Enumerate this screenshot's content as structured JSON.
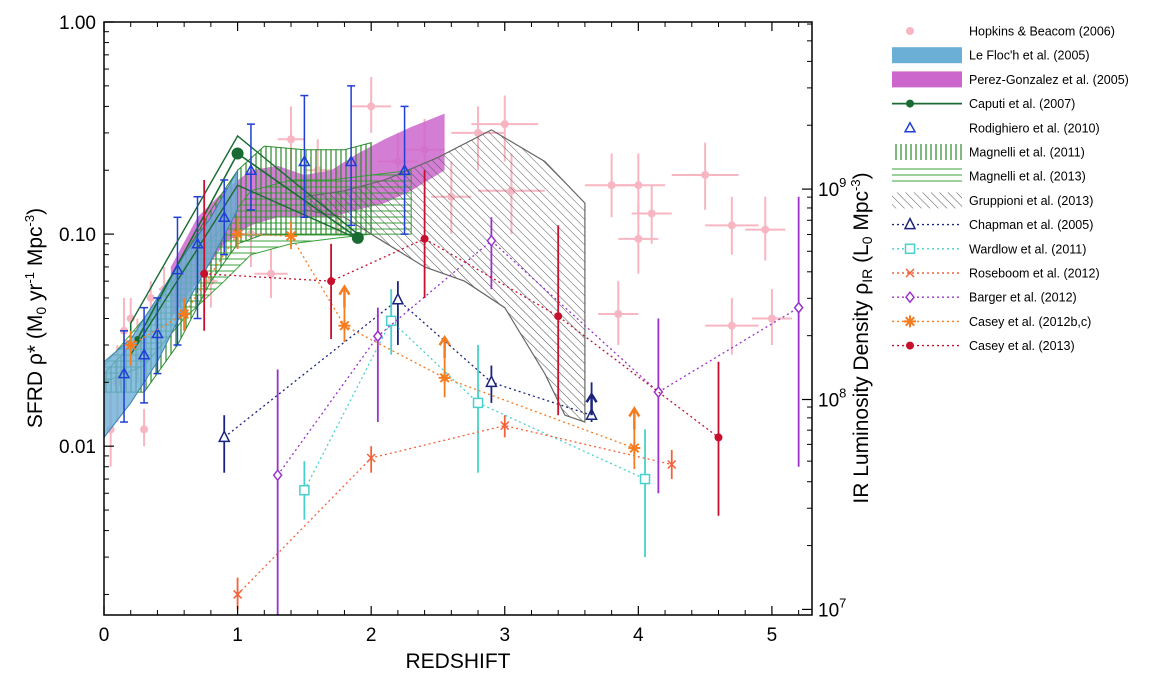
{
  "chart_data": {
    "type": "scatter",
    "xlabel": "REDSHIFT",
    "ylabel_main": "SFRD ρ* (M",
    "ylabel_sub": "0",
    "ylabel_unit": " yr",
    "ylabel_exp1": "-1",
    "ylabel_mpc": " Mpc",
    "ylabel_exp2": "-3",
    "ylabel_close": ")",
    "y2label_main": "IR Luminosity Density ρ",
    "y2label_sub": "IR",
    "y2label_mid": " (L",
    "y2label_sub2": "0",
    "y2label_mpc": " Mpc",
    "y2label_exp": "-3",
    "y2label_close": ")",
    "xlim": [
      0,
      5.3
    ],
    "ylim": [
      0.0016,
      1.0
    ],
    "xticks": [
      "0",
      "1",
      "2",
      "3",
      "4",
      "5"
    ],
    "yticks": [
      "0.01",
      "0.10",
      "1.00"
    ],
    "y2ticks": [
      {
        "base": "10",
        "exp": "7"
      },
      {
        "base": "10",
        "exp": "8"
      },
      {
        "base": "10",
        "exp": "9"
      }
    ],
    "legend": [
      {
        "label": "Hopkins & Beacom (2006)",
        "color": "#f7b6c2",
        "kind": "dot"
      },
      {
        "label": "Le Floc'h et al. (2005)",
        "color": "#6baed6",
        "kind": "band"
      },
      {
        "label": "Perez-Gonzalez et al. (2005)",
        "color": "#cc66cc",
        "kind": "band"
      },
      {
        "label": "Caputi et al. (2007)",
        "color": "#1a6b33",
        "kind": "line-dot"
      },
      {
        "label": "Rodighiero et al. (2010)",
        "color": "#1f3fd6",
        "kind": "triangle"
      },
      {
        "label": "Magnelli et al. (2011)",
        "color": "#2a8a2a",
        "kind": "vhatch"
      },
      {
        "label": "Magnelli et al. (2013)",
        "color": "#3aa03a",
        "kind": "hhatch"
      },
      {
        "label": "Gruppioni et al. (2013)",
        "color": "#555555",
        "kind": "dhatch"
      },
      {
        "label": "Chapman et al. (2005)",
        "color": "#1a237e",
        "kind": "dot-triangle"
      },
      {
        "label": "Wardlow et al. (2011)",
        "color": "#48d1cc",
        "kind": "dot-square"
      },
      {
        "label": "Roseboom et al. (2012)",
        "color": "#f4623a",
        "kind": "dot-x"
      },
      {
        "label": "Barger et al. (2012)",
        "color": "#9932cc",
        "kind": "dot-diamond"
      },
      {
        "label": "Casey et al. (2012b,c)",
        "color": "#f57c1f",
        "kind": "dot-star"
      },
      {
        "label": "Casey et al. (2013)",
        "color": "#c8102e",
        "kind": "dot-circle"
      }
    ],
    "hopkins": [
      [
        0.05,
        0.012,
        0.03,
        0.008,
        0.018
      ],
      [
        0.1,
        0.02,
        0.05,
        0.013,
        0.03
      ],
      [
        0.15,
        0.035,
        0.05,
        0.025,
        0.05
      ],
      [
        0.2,
        0.04,
        0.06,
        0.03,
        0.05
      ],
      [
        0.25,
        0.03,
        0.05,
        0.02,
        0.04
      ],
      [
        0.3,
        0.012,
        0.05,
        0.01,
        0.015
      ],
      [
        0.35,
        0.05,
        0.05,
        0.04,
        0.06
      ],
      [
        0.45,
        0.055,
        0.08,
        0.04,
        0.07
      ],
      [
        0.6,
        0.05,
        0.1,
        0.035,
        0.07
      ],
      [
        0.8,
        0.06,
        0.1,
        0.045,
        0.08
      ],
      [
        1.1,
        0.1,
        0.2,
        0.07,
        0.15
      ],
      [
        1.25,
        0.065,
        0.25,
        0.05,
        0.085
      ],
      [
        1.4,
        0.28,
        0.2,
        0.2,
        0.4
      ],
      [
        1.6,
        0.2,
        0.2,
        0.15,
        0.28
      ],
      [
        1.75,
        0.14,
        0.2,
        0.1,
        0.2
      ],
      [
        2.0,
        0.4,
        0.3,
        0.3,
        0.55
      ],
      [
        2.2,
        0.22,
        0.3,
        0.15,
        0.3
      ],
      [
        2.4,
        0.25,
        0.3,
        0.18,
        0.35
      ],
      [
        2.6,
        0.15,
        0.3,
        0.1,
        0.22
      ],
      [
        2.8,
        0.3,
        0.4,
        0.2,
        0.4
      ],
      [
        3.0,
        0.33,
        0.5,
        0.22,
        0.45
      ],
      [
        3.05,
        0.16,
        0.5,
        0.1,
        0.24
      ],
      [
        3.8,
        0.17,
        0.4,
        0.12,
        0.24
      ],
      [
        4.0,
        0.17,
        0.4,
        0.12,
        0.24
      ],
      [
        4.0,
        0.095,
        0.3,
        0.065,
        0.14
      ],
      [
        4.1,
        0.125,
        0.3,
        0.09,
        0.17
      ],
      [
        3.85,
        0.042,
        0.3,
        0.03,
        0.06
      ],
      [
        4.5,
        0.19,
        0.5,
        0.13,
        0.27
      ],
      [
        4.7,
        0.11,
        0.4,
        0.08,
        0.15
      ],
      [
        4.95,
        0.105,
        0.3,
        0.075,
        0.15
      ],
      [
        4.7,
        0.037,
        0.4,
        0.027,
        0.05
      ],
      [
        5.0,
        0.04,
        0.3,
        0.03,
        0.055
      ]
    ],
    "lefloch_upper": [
      [
        0,
        0.025
      ],
      [
        0.2,
        0.032
      ],
      [
        0.4,
        0.05
      ],
      [
        0.6,
        0.08
      ],
      [
        0.8,
        0.12
      ],
      [
        1.0,
        0.2
      ]
    ],
    "lefloch_lower": [
      [
        1.0,
        0.13
      ],
      [
        0.8,
        0.075
      ],
      [
        0.6,
        0.045
      ],
      [
        0.4,
        0.025
      ],
      [
        0.2,
        0.016
      ],
      [
        0,
        0.011
      ]
    ],
    "perez_upper": [
      [
        0.5,
        0.07
      ],
      [
        0.7,
        0.12
      ],
      [
        0.9,
        0.16
      ],
      [
        1.1,
        0.2
      ],
      [
        1.3,
        0.21
      ],
      [
        1.5,
        0.19
      ],
      [
        1.7,
        0.2
      ],
      [
        1.9,
        0.24
      ],
      [
        2.1,
        0.28
      ],
      [
        2.3,
        0.32
      ],
      [
        2.55,
        0.37
      ],
      [
        2.55,
        0.2
      ]
    ],
    "perez_lower": [
      [
        2.3,
        0.16
      ],
      [
        2.1,
        0.14
      ],
      [
        1.9,
        0.13
      ],
      [
        1.7,
        0.12
      ],
      [
        1.5,
        0.12
      ],
      [
        1.3,
        0.12
      ],
      [
        1.1,
        0.11
      ],
      [
        0.9,
        0.09
      ],
      [
        0.7,
        0.06
      ],
      [
        0.5,
        0.04
      ]
    ],
    "caputi": [
      [
        0.25,
        0.032
      ],
      [
        1.0,
        0.24
      ],
      [
        1.9,
        0.096
      ]
    ],
    "caputi_band": [
      [
        0.2,
        0.027
      ],
      [
        1.0,
        0.17
      ],
      [
        1.9,
        0.095
      ],
      [
        1.9,
        0.1
      ],
      [
        1.0,
        0.29
      ],
      [
        0.2,
        0.038
      ]
    ],
    "rodighiero": [
      [
        0.15,
        0.022,
        0.013,
        0.035
      ],
      [
        0.3,
        0.027,
        0.016,
        0.045
      ],
      [
        0.4,
        0.034,
        0.022,
        0.05
      ],
      [
        0.55,
        0.068,
        0.03,
        0.12
      ],
      [
        0.7,
        0.09,
        0.04,
        0.15
      ],
      [
        0.9,
        0.12,
        0.08,
        0.18
      ],
      [
        1.1,
        0.2,
        0.13,
        0.33
      ],
      [
        1.5,
        0.22,
        0.12,
        0.45
      ],
      [
        1.85,
        0.22,
        0.11,
        0.5
      ],
      [
        2.25,
        0.2,
        0.1,
        0.4
      ]
    ],
    "magnelli11_upper": [
      [
        0.0,
        0.022
      ],
      [
        0.3,
        0.035
      ],
      [
        0.55,
        0.07
      ],
      [
        0.8,
        0.13
      ],
      [
        1.0,
        0.2
      ],
      [
        1.2,
        0.26
      ],
      [
        1.5,
        0.25
      ],
      [
        1.8,
        0.25
      ],
      [
        2.0,
        0.27
      ]
    ],
    "magnelli11_lower": [
      [
        2.0,
        0.1
      ],
      [
        1.8,
        0.1
      ],
      [
        1.5,
        0.1
      ],
      [
        1.2,
        0.1
      ],
      [
        1.0,
        0.09
      ],
      [
        0.8,
        0.06
      ],
      [
        0.55,
        0.03
      ],
      [
        0.3,
        0.018
      ],
      [
        0.0,
        0.018
      ]
    ],
    "magnelli13_upper": [
      [
        0.0,
        0.024
      ],
      [
        0.3,
        0.04
      ],
      [
        0.6,
        0.07
      ],
      [
        0.9,
        0.11
      ],
      [
        1.1,
        0.16
      ],
      [
        1.4,
        0.18
      ],
      [
        1.7,
        0.18
      ],
      [
        2.0,
        0.19
      ],
      [
        2.3,
        0.2
      ]
    ],
    "magnelli13_lower": [
      [
        2.3,
        0.1
      ],
      [
        2.0,
        0.1
      ],
      [
        1.7,
        0.095
      ],
      [
        1.4,
        0.09
      ],
      [
        1.1,
        0.08
      ],
      [
        0.9,
        0.06
      ],
      [
        0.6,
        0.04
      ],
      [
        0.3,
        0.024
      ],
      [
        0.0,
        0.02
      ]
    ],
    "gruppioni_upper": [
      [
        1.5,
        0.15
      ],
      [
        1.8,
        0.16
      ],
      [
        2.1,
        0.18
      ],
      [
        2.5,
        0.23
      ],
      [
        2.9,
        0.31
      ],
      [
        3.3,
        0.22
      ],
      [
        3.6,
        0.14
      ],
      [
        3.6,
        0.013
      ]
    ],
    "gruppioni_lower": [
      [
        3.45,
        0.014
      ],
      [
        3.3,
        0.022
      ],
      [
        3.0,
        0.045
      ],
      [
        2.7,
        0.06
      ],
      [
        2.4,
        0.07
      ],
      [
        2.0,
        0.1
      ],
      [
        1.8,
        0.12
      ],
      [
        1.5,
        0.13
      ]
    ],
    "chapman": [
      [
        0.9,
        0.011,
        0.0075,
        0.014
      ],
      [
        2.2,
        0.049,
        0.03,
        0.06
      ],
      [
        2.9,
        0.02,
        0.016,
        0.024
      ],
      [
        3.65,
        0.014,
        0.013,
        0.02
      ]
    ],
    "wardlow": [
      [
        1.5,
        0.0062,
        0.0045,
        0.0085
      ],
      [
        2.15,
        0.039,
        0.027,
        0.055
      ],
      [
        2.8,
        0.016,
        0.0075,
        0.03
      ],
      [
        4.05,
        0.007,
        0.003,
        0.012
      ]
    ],
    "roseboom": [
      [
        1.0,
        0.002,
        0.0017,
        0.0024
      ],
      [
        2.0,
        0.0088,
        0.0075,
        0.01
      ],
      [
        3.0,
        0.0125,
        0.011,
        0.014
      ],
      [
        4.25,
        0.0082,
        0.007,
        0.0096
      ]
    ],
    "barger": [
      [
        1.3,
        0.0073,
        0.0016,
        0.023
      ],
      [
        2.05,
        0.033,
        0.013,
        0.045
      ],
      [
        2.9,
        0.093,
        0.055,
        0.12
      ],
      [
        4.15,
        0.018,
        0.006,
        0.04
      ],
      [
        5.2,
        0.045,
        0.008,
        0.15
      ]
    ],
    "casey12": [
      [
        0.2,
        0.03,
        0.024,
        0.035
      ],
      [
        0.6,
        0.042,
        0.035,
        0.05
      ],
      [
        1.0,
        0.1,
        0.085,
        0.12
      ],
      [
        1.4,
        0.098,
        0.085,
        0.115
      ],
      [
        1.8,
        0.037,
        0.031,
        0.045
      ],
      [
        2.55,
        0.021,
        0.017,
        0.026
      ],
      [
        3.97,
        0.0098,
        0.0078,
        0.012
      ]
    ],
    "casey12_arrows": [
      [
        1.8,
        0.045
      ],
      [
        2.55,
        0.026
      ],
      [
        3.97,
        0.012
      ]
    ],
    "casey13": [
      [
        0.75,
        0.065,
        0.035,
        0.18
      ],
      [
        1.7,
        0.06,
        0.032,
        0.09
      ],
      [
        2.4,
        0.095,
        0.05,
        0.2
      ],
      [
        3.4,
        0.041,
        0.014,
        0.11
      ],
      [
        4.6,
        0.011,
        0.0047,
        0.025
      ]
    ],
    "chapman_arrow": [
      3.65,
      0.014
    ]
  }
}
